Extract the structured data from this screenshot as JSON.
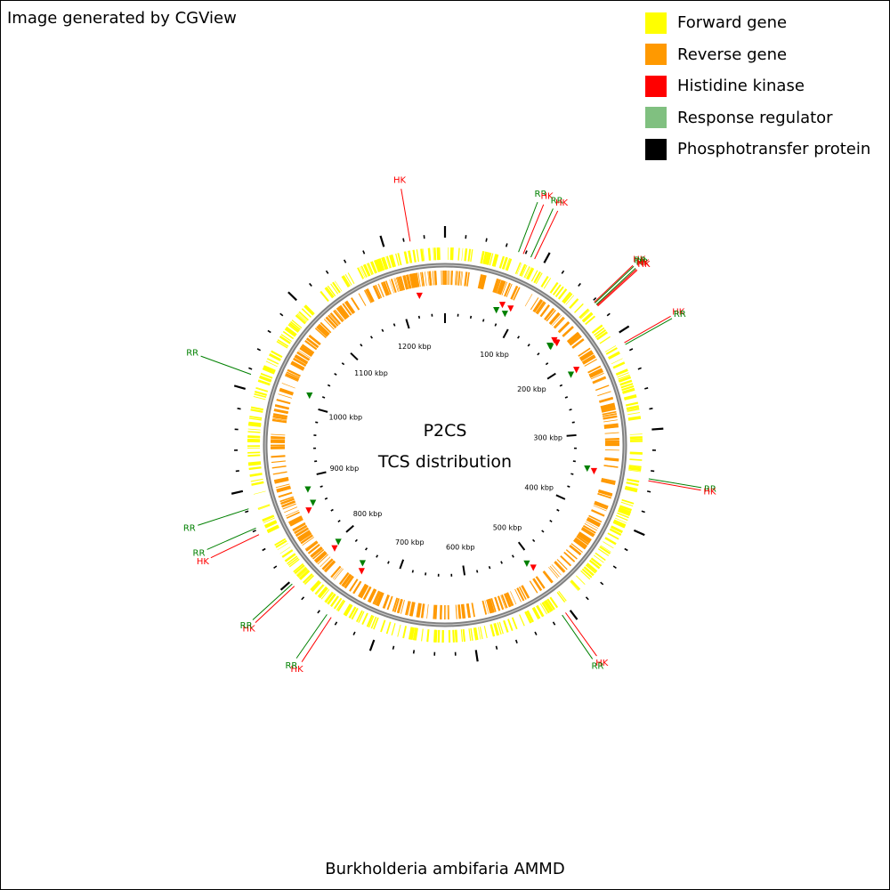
{
  "credit": "Image generated by CGView",
  "species": "Burkholderia ambifaria AMMD",
  "center": {
    "line1": "P2CS",
    "line2": "TCS distribution"
  },
  "legend": [
    {
      "label": "Forward gene",
      "color": "#ffff00"
    },
    {
      "label": "Reverse gene",
      "color": "#ff9900"
    },
    {
      "label": "Histidine kinase",
      "color": "#ff0000"
    },
    {
      "label": "Response regulator",
      "color": "#80c080"
    },
    {
      "label": "Phosphotransfer protein",
      "color": "#000000"
    }
  ],
  "colors": {
    "forward": "#ffff00",
    "reverse": "#ff9900",
    "hk": "#ff0000",
    "rr": "#008000",
    "backbone": "#808080",
    "ticks": "#000000"
  },
  "chart_data": {
    "type": "circular-genome-map",
    "genome_length_kbp": 1260,
    "tick_labels": [
      {
        "kbp": 100,
        "label": "100 kbp"
      },
      {
        "kbp": 200,
        "label": "200 kbp"
      },
      {
        "kbp": 300,
        "label": "300 kbp"
      },
      {
        "kbp": 400,
        "label": "400 kbp"
      },
      {
        "kbp": 500,
        "label": "500 kbp"
      },
      {
        "kbp": 600,
        "label": "600 kbp"
      },
      {
        "kbp": 700,
        "label": "700 kbp"
      },
      {
        "kbp": 800,
        "label": "800 kbp"
      },
      {
        "kbp": 900,
        "label": "900 kbp"
      },
      {
        "kbp": 1000,
        "label": "1000 kbp"
      },
      {
        "kbp": 1100,
        "label": "1100 kbp"
      },
      {
        "kbp": 1200,
        "label": "1200 kbp"
      }
    ],
    "tcs_features": [
      {
        "type": "HK",
        "label": "HK",
        "kbp": 1226
      },
      {
        "type": "RR",
        "label": "RR",
        "kbp": 73
      },
      {
        "type": "HK",
        "label": "HK",
        "kbp": 78
      },
      {
        "type": "RR",
        "label": "RR",
        "kbp": 86
      },
      {
        "type": "HK",
        "label": "HK",
        "kbp": 90
      },
      {
        "type": "HK",
        "label": "HK",
        "kbp": 162
      },
      {
        "type": "RR",
        "label": "RR",
        "kbp": 163
      },
      {
        "type": "RR",
        "label": "RR",
        "kbp": 165
      },
      {
        "type": "HK",
        "label": "HK",
        "kbp": 166
      },
      {
        "type": "HK",
        "label": "HK",
        "kbp": 167
      },
      {
        "type": "HK",
        "label": "HK",
        "kbp": 211
      },
      {
        "type": "RR",
        "label": "RR",
        "kbp": 213
      },
      {
        "type": "RR",
        "label": "RR",
        "kbp": 348
      },
      {
        "type": "HK",
        "label": "HK",
        "kbp": 350
      },
      {
        "type": "HK",
        "label": "HK",
        "kbp": 505
      },
      {
        "type": "RR",
        "label": "RR",
        "kbp": 509
      },
      {
        "type": "HK",
        "label": "HK",
        "kbp": 747
      },
      {
        "type": "RR",
        "label": "RR",
        "kbp": 752
      },
      {
        "type": "HK",
        "label": "HK",
        "kbp": 794
      },
      {
        "type": "RR",
        "label": "RR",
        "kbp": 797
      },
      {
        "type": "HK",
        "label": "HK",
        "kbp": 855
      },
      {
        "type": "RR",
        "label": "RR",
        "kbp": 862
      },
      {
        "type": "RR",
        "label": "RR",
        "kbp": 882
      },
      {
        "type": "RR",
        "label": "RR",
        "kbp": 1015
      }
    ]
  }
}
